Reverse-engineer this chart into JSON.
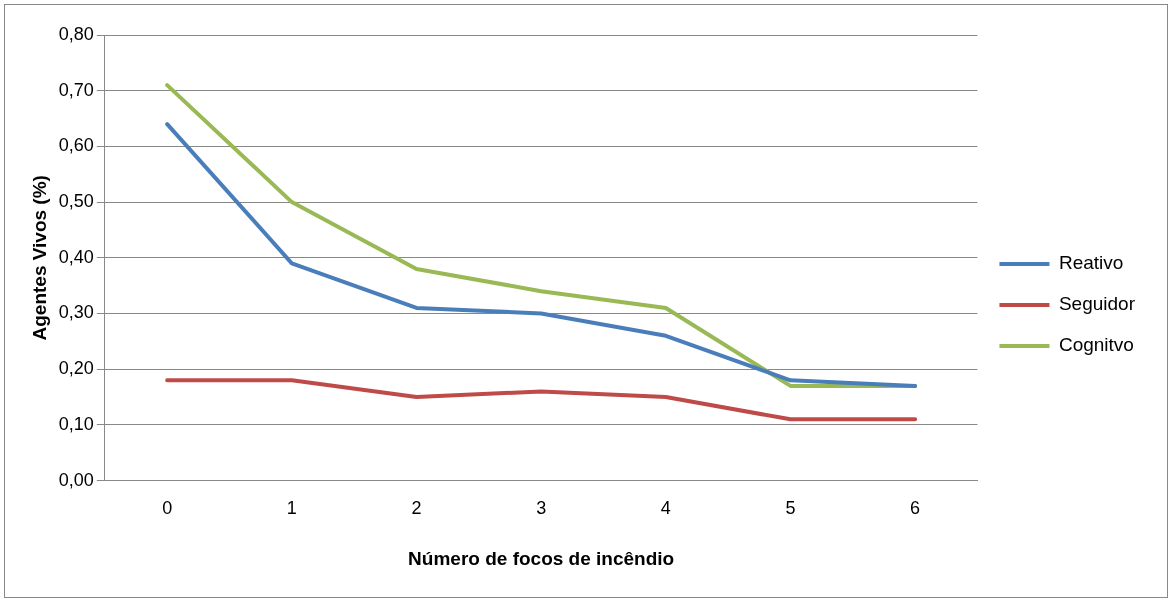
{
  "chart_data": {
    "type": "line",
    "xlabel": "Número de focos de incêndio",
    "ylabel": "Agentes Vivos (%)",
    "categories": [
      "0",
      "1",
      "2",
      "3",
      "4",
      "5",
      "6"
    ],
    "series": [
      {
        "name": "Reativo",
        "color": "#4a7ebb",
        "values": [
          0.64,
          0.39,
          0.31,
          0.3,
          0.26,
          0.18,
          0.17
        ]
      },
      {
        "name": "Seguidor",
        "color": "#be4b48",
        "values": [
          0.18,
          0.18,
          0.15,
          0.16,
          0.15,
          0.11,
          0.11
        ]
      },
      {
        "name": "Cognitvo",
        "color": "#98b954",
        "values": [
          0.71,
          0.5,
          0.38,
          0.34,
          0.31,
          0.17,
          0.17
        ]
      }
    ],
    "ylim": [
      0,
      0.8
    ],
    "yticks": [
      {
        "value": 0,
        "label": "0,00"
      },
      {
        "value": 0.1,
        "label": "0,10"
      },
      {
        "value": 0.2,
        "label": "0,20"
      },
      {
        "value": 0.3,
        "label": "0,30"
      },
      {
        "value": 0.4,
        "label": "0,40"
      },
      {
        "value": 0.5,
        "label": "0,50"
      },
      {
        "value": 0.6,
        "label": "0,60"
      },
      {
        "value": 0.7,
        "label": "0,70"
      },
      {
        "value": 0.8,
        "label": "0,80"
      }
    ],
    "grid": "y",
    "legend": "right",
    "marker": "none",
    "line_style": "solid"
  }
}
